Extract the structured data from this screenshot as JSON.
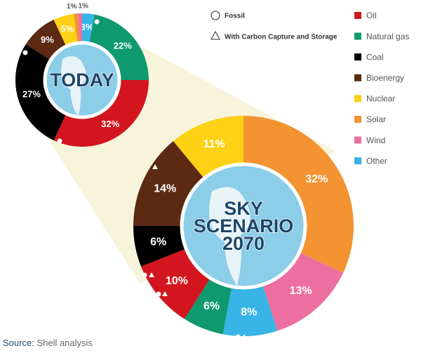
{
  "chart_data": [
    {
      "type": "donut",
      "title": [
        "TODAY"
      ],
      "categories": [
        "Other",
        "Natural gas",
        "Oil",
        "Coal",
        "Bioenergy",
        "Nuclear",
        "Solar",
        "Wind"
      ],
      "values": [
        3,
        22,
        32,
        27,
        9,
        5,
        1,
        1
      ],
      "value_labels": [
        "3%",
        "22%",
        "32%",
        "27%",
        "9%",
        "5%",
        "1%",
        "1%"
      ],
      "colors": [
        "#39b4e6",
        "#0e9a6e",
        "#d2151e",
        "#000000",
        "#5c2a12",
        "#fcd116",
        "#f39332",
        "#ec6fa0"
      ]
    },
    {
      "type": "donut",
      "title": [
        "SKY",
        "SCENARIO",
        "2070"
      ],
      "categories": [
        "Solar",
        "Wind",
        "Other",
        "Natural gas",
        "Oil",
        "Coal",
        "Bioenergy",
        "Nuclear"
      ],
      "values": [
        32,
        13,
        8,
        6,
        10,
        6,
        14,
        11
      ],
      "value_labels": [
        "32%",
        "13%",
        "8%",
        "6%",
        "10%",
        "6%",
        "14%",
        "11%"
      ],
      "colors": [
        "#f39332",
        "#ec6fa0",
        "#39b4e6",
        "#0e9a6e",
        "#d2151e",
        "#000000",
        "#5c2a12",
        "#fcd116"
      ]
    }
  ],
  "legend": {
    "labels": [
      "Oil",
      "Natural gas",
      "Coal",
      "Bioenergy",
      "Nuclear",
      "Solar",
      "Wind",
      "Other"
    ],
    "colors": [
      "#d2151e",
      "#0e9a6e",
      "#000000",
      "#5c2a12",
      "#fcd116",
      "#f39332",
      "#ec6fa0",
      "#39b4e6"
    ]
  },
  "marker_legend": {
    "circle": "Fossil",
    "triangle": "With Carbon Capture and Storage"
  },
  "source": {
    "label": "Source:",
    "text": "Shell analysis"
  }
}
